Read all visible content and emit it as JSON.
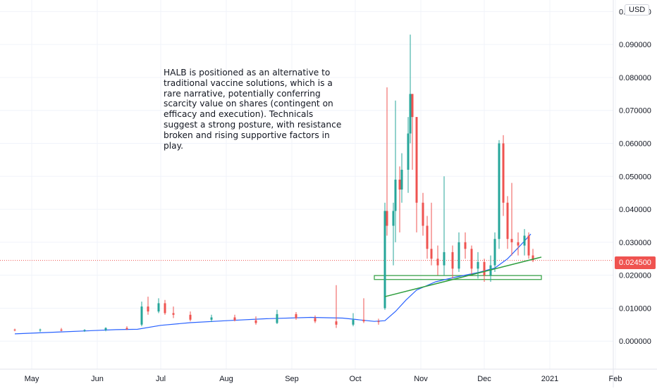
{
  "chart_data": {
    "type": "candlestick",
    "instrument": "HALB",
    "currency": "USD",
    "x_ticks": [
      "May",
      "Jun",
      "Jul",
      "Aug",
      "Sep",
      "Oct",
      "Nov",
      "Dec",
      "2021",
      "Feb"
    ],
    "y_ticks": [
      "0.000000",
      "0.010000",
      "0.020000",
      "0.030000",
      "0.040000",
      "0.050000",
      "0.060000",
      "0.070000",
      "0.080000",
      "0.090000",
      "0.100000"
    ],
    "ylim": [
      -0.0085,
      0.1035
    ],
    "grid": true,
    "last_price": 0.0245,
    "last_price_label": "0.024500",
    "annotation": "HALB is positioned as an alternative to\ntraditional vaccine solutions, which is a\nrare narrative, potentially conferring\nscarcity value on shares (contingent on\nefficacy and execution). Technicals\nsuggest a strong posture, with resistance\nbroken and rising supportive factors in\nplay.",
    "colors": {
      "up": "#26a69a",
      "down": "#ef5350",
      "ma": "#2962ff",
      "trendline": "#2e9e3e",
      "support_zone": "#2e9e3e",
      "grid": "#f0f3fa"
    },
    "support_zone": {
      "date_start": "2020-10-10",
      "date_end": "2020-12-28",
      "low": 0.0187,
      "high": 0.0199
    },
    "trendline": {
      "start": {
        "date": "2020-10-15",
        "value": 0.0135
      },
      "end": {
        "date": "2020-12-28",
        "value": 0.0255
      }
    },
    "moving_average": [
      {
        "date": "2020-04-23",
        "value": 0.0022
      },
      {
        "date": "2020-05-15",
        "value": 0.0028
      },
      {
        "date": "2020-06-10",
        "value": 0.0035
      },
      {
        "date": "2020-06-20",
        "value": 0.0036
      },
      {
        "date": "2020-07-01",
        "value": 0.0048
      },
      {
        "date": "2020-07-15",
        "value": 0.0056
      },
      {
        "date": "2020-08-01",
        "value": 0.0062
      },
      {
        "date": "2020-08-20",
        "value": 0.0068
      },
      {
        "date": "2020-09-10",
        "value": 0.0072
      },
      {
        "date": "2020-09-25",
        "value": 0.007
      },
      {
        "date": "2020-10-10",
        "value": 0.006
      },
      {
        "date": "2020-10-15",
        "value": 0.0062
      },
      {
        "date": "2020-10-20",
        "value": 0.009
      },
      {
        "date": "2020-10-25",
        "value": 0.0125
      },
      {
        "date": "2020-10-30",
        "value": 0.0155
      },
      {
        "date": "2020-11-08",
        "value": 0.018
      },
      {
        "date": "2020-11-18",
        "value": 0.0195
      },
      {
        "date": "2020-11-28",
        "value": 0.0208
      },
      {
        "date": "2020-12-06",
        "value": 0.0222
      },
      {
        "date": "2020-12-12",
        "value": 0.025
      },
      {
        "date": "2020-12-18",
        "value": 0.029
      },
      {
        "date": "2020-12-23",
        "value": 0.0325
      }
    ],
    "candles": [
      [
        "2020-04-23",
        0.0035,
        0.0038,
        0.003,
        0.0033
      ],
      [
        "2020-05-05",
        0.0033,
        0.0038,
        0.0028,
        0.0035
      ],
      [
        "2020-05-15",
        0.0035,
        0.004,
        0.003,
        0.0032
      ],
      [
        "2020-05-26",
        0.0032,
        0.0036,
        0.0028,
        0.0034
      ],
      [
        "2020-06-05",
        0.0034,
        0.0042,
        0.003,
        0.004
      ],
      [
        "2020-06-15",
        0.004,
        0.0045,
        0.0034,
        0.0036
      ],
      [
        "2020-06-22",
        0.005,
        0.012,
        0.0045,
        0.0105
      ],
      [
        "2020-06-25",
        0.0105,
        0.0135,
        0.008,
        0.009
      ],
      [
        "2020-06-30",
        0.009,
        0.013,
        0.0085,
        0.0115
      ],
      [
        "2020-07-03",
        0.0115,
        0.0125,
        0.008,
        0.0085
      ],
      [
        "2020-07-07",
        0.0085,
        0.0105,
        0.007,
        0.008
      ],
      [
        "2020-07-15",
        0.008,
        0.009,
        0.006,
        0.0065
      ],
      [
        "2020-07-25",
        0.0065,
        0.008,
        0.0058,
        0.0072
      ],
      [
        "2020-08-05",
        0.0072,
        0.008,
        0.006,
        0.0063
      ],
      [
        "2020-08-15",
        0.0063,
        0.0075,
        0.005,
        0.0055
      ],
      [
        "2020-08-25",
        0.0055,
        0.0095,
        0.0052,
        0.0082
      ],
      [
        "2020-09-03",
        0.0082,
        0.0088,
        0.0065,
        0.007
      ],
      [
        "2020-09-12",
        0.007,
        0.0078,
        0.0055,
        0.006
      ],
      [
        "2020-09-22",
        0.006,
        0.017,
        0.004,
        0.005
      ],
      [
        "2020-09-30",
        0.005,
        0.0085,
        0.0045,
        0.0065
      ],
      [
        "2020-10-05",
        0.0065,
        0.013,
        0.0055,
        0.006
      ],
      [
        "2020-10-12",
        0.006,
        0.0068,
        0.005,
        0.0058
      ],
      [
        "2020-10-15",
        0.01,
        0.042,
        0.0095,
        0.0395
      ],
      [
        "2020-10-16",
        0.0395,
        0.077,
        0.032,
        0.035
      ],
      [
        "2020-10-19",
        0.035,
        0.042,
        0.023,
        0.0395
      ],
      [
        "2020-10-20",
        0.0395,
        0.073,
        0.03,
        0.049
      ],
      [
        "2020-10-22",
        0.049,
        0.053,
        0.033,
        0.046
      ],
      [
        "2020-10-23",
        0.046,
        0.057,
        0.042,
        0.052
      ],
      [
        "2020-10-26",
        0.052,
        0.068,
        0.045,
        0.063
      ],
      [
        "2020-10-27",
        0.063,
        0.093,
        0.06,
        0.075
      ],
      [
        "2020-10-28",
        0.075,
        0.075,
        0.052,
        0.068
      ],
      [
        "2020-10-30",
        0.068,
        0.068,
        0.033,
        0.042
      ],
      [
        "2020-11-02",
        0.042,
        0.045,
        0.032,
        0.035
      ],
      [
        "2020-11-04",
        0.035,
        0.038,
        0.025,
        0.028
      ],
      [
        "2020-11-06",
        0.028,
        0.042,
        0.023,
        0.025
      ],
      [
        "2020-11-09",
        0.025,
        0.029,
        0.02,
        0.023
      ],
      [
        "2020-11-12",
        0.023,
        0.05,
        0.02,
        0.027
      ],
      [
        "2020-11-16",
        0.027,
        0.029,
        0.019,
        0.022
      ],
      [
        "2020-11-19",
        0.022,
        0.033,
        0.021,
        0.03
      ],
      [
        "2020-11-22",
        0.03,
        0.033,
        0.025,
        0.028
      ],
      [
        "2020-11-25",
        0.028,
        0.029,
        0.02,
        0.022
      ],
      [
        "2020-11-28",
        0.022,
        0.027,
        0.019,
        0.024
      ],
      [
        "2020-12-01",
        0.024,
        0.025,
        0.018,
        0.02
      ],
      [
        "2020-12-04",
        0.02,
        0.026,
        0.018,
        0.023
      ],
      [
        "2020-12-06",
        0.023,
        0.033,
        0.021,
        0.031
      ],
      [
        "2020-12-08",
        0.031,
        0.061,
        0.028,
        0.06
      ],
      [
        "2020-12-10",
        0.06,
        0.0625,
        0.038,
        0.042
      ],
      [
        "2020-12-12",
        0.042,
        0.044,
        0.028,
        0.031
      ],
      [
        "2020-12-14",
        0.031,
        0.048,
        0.026,
        0.03
      ],
      [
        "2020-12-17",
        0.03,
        0.033,
        0.026,
        0.029
      ],
      [
        "2020-12-20",
        0.029,
        0.034,
        0.026,
        0.032
      ],
      [
        "2020-12-22",
        0.032,
        0.033,
        0.025,
        0.026
      ],
      [
        "2020-12-24",
        0.026,
        0.028,
        0.024,
        0.0245
      ]
    ]
  }
}
